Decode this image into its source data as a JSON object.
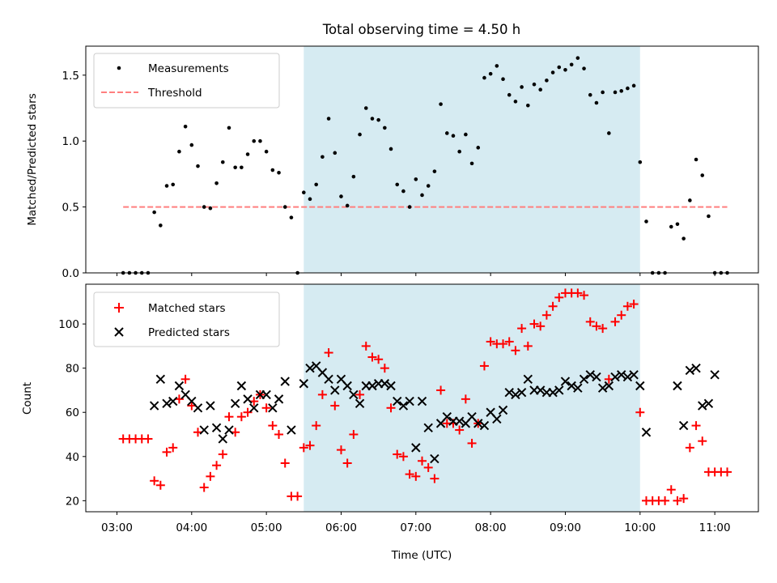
{
  "title": "Total observing time = 4.50 h",
  "xlabel": "Time (UTC)",
  "xticks": [
    "03:00",
    "04:00",
    "05:00",
    "06:00",
    "07:00",
    "08:00",
    "09:00",
    "10:00",
    "11:00"
  ],
  "colors": {
    "measurement": "#000000",
    "threshold": "#ff7f7f",
    "matched": "#ff0000",
    "predicted": "#000000",
    "span": "#add8e6"
  },
  "chart_data": [
    {
      "type": "scatter",
      "ylabel": "Matched/Predicted stars",
      "xlim": [
        "02:35",
        "11:35"
      ],
      "ylim": [
        0,
        1.72
      ],
      "yticks": [
        "0.0",
        "0.5",
        "1.0",
        "1.5"
      ],
      "legend": "upper-left",
      "grid": false,
      "shaded_span": [
        "05:30",
        "10:00"
      ],
      "threshold": {
        "name": "Threshold",
        "y": 0.5,
        "x": [
          "03:05",
          "11:10"
        ]
      },
      "series": [
        {
          "name": "Measurements",
          "x": [
            "03:05",
            "03:10",
            "03:15",
            "03:20",
            "03:25",
            "03:30",
            "03:35",
            "03:40",
            "03:45",
            "03:50",
            "03:55",
            "04:00",
            "04:05",
            "04:10",
            "04:15",
            "04:20",
            "04:25",
            "04:30",
            "04:35",
            "04:40",
            "04:45",
            "04:50",
            "04:55",
            "05:00",
            "05:05",
            "05:10",
            "05:15",
            "05:20",
            "05:25",
            "05:30",
            "05:35",
            "05:40",
            "05:45",
            "05:50",
            "05:55",
            "06:00",
            "06:05",
            "06:10",
            "06:15",
            "06:20",
            "06:25",
            "06:30",
            "06:35",
            "06:40",
            "06:45",
            "06:50",
            "06:55",
            "07:00",
            "07:05",
            "07:10",
            "07:15",
            "07:20",
            "07:25",
            "07:30",
            "07:35",
            "07:40",
            "07:45",
            "07:50",
            "07:55",
            "08:00",
            "08:05",
            "08:10",
            "08:15",
            "08:20",
            "08:25",
            "08:30",
            "08:35",
            "08:40",
            "08:45",
            "08:50",
            "08:55",
            "09:00",
            "09:05",
            "09:10",
            "09:15",
            "09:20",
            "09:25",
            "09:30",
            "09:35",
            "09:40",
            "09:45",
            "09:50",
            "09:55",
            "10:00",
            "10:05",
            "10:10",
            "10:15",
            "10:20",
            "10:25",
            "10:30",
            "10:35",
            "10:40",
            "10:45",
            "10:50",
            "10:55",
            "11:00",
            "11:05",
            "11:10"
          ],
          "values": [
            0,
            0,
            0,
            0,
            0,
            0.46,
            0.36,
            0.66,
            0.67,
            0.92,
            1.11,
            0.97,
            0.81,
            0.5,
            0.49,
            0.68,
            0.84,
            1.1,
            0.8,
            0.8,
            0.9,
            1.0,
            1.0,
            0.92,
            0.78,
            0.76,
            0.5,
            0.42,
            0.0,
            0.61,
            0.56,
            0.67,
            0.88,
            1.17,
            0.91,
            0.58,
            0.51,
            0.73,
            1.05,
            1.25,
            1.17,
            1.16,
            1.1,
            0.94,
            0.67,
            0.62,
            0.5,
            0.71,
            0.59,
            0.66,
            0.77,
            1.28,
            1.06,
            1.04,
            0.92,
            1.05,
            0.83,
            0.95,
            1.48,
            1.51,
            1.57,
            1.47,
            1.35,
            1.3,
            1.41,
            1.27,
            1.43,
            1.39,
            1.46,
            1.52,
            1.56,
            1.54,
            1.58,
            1.63,
            1.55,
            1.35,
            1.29,
            1.37,
            1.06,
            1.37,
            1.38,
            1.4,
            1.42,
            0.84,
            0.39,
            0,
            0,
            0,
            0.35,
            0.37,
            0.26,
            0.55,
            0.86,
            0.74,
            0.43,
            0,
            0,
            0
          ]
        }
      ]
    },
    {
      "type": "scatter",
      "ylabel": "Count",
      "xlim": [
        "02:35",
        "11:35"
      ],
      "ylim": [
        15,
        118
      ],
      "yticks": [
        "20",
        "40",
        "60",
        "80",
        "100"
      ],
      "legend": "upper-left",
      "grid": false,
      "shaded_span": [
        "05:30",
        "10:00"
      ],
      "series": [
        {
          "name": "Matched stars",
          "marker": "plus",
          "x": [
            "03:05",
            "03:10",
            "03:15",
            "03:20",
            "03:25",
            "03:30",
            "03:35",
            "03:40",
            "03:45",
            "03:50",
            "03:55",
            "04:00",
            "04:05",
            "04:10",
            "04:15",
            "04:20",
            "04:25",
            "04:30",
            "04:35",
            "04:40",
            "04:45",
            "04:50",
            "04:55",
            "05:00",
            "05:05",
            "05:10",
            "05:15",
            "05:20",
            "05:25",
            "05:30",
            "05:35",
            "05:40",
            "05:45",
            "05:50",
            "05:55",
            "06:00",
            "06:05",
            "06:10",
            "06:15",
            "06:20",
            "06:25",
            "06:30",
            "06:35",
            "06:40",
            "06:45",
            "06:50",
            "06:55",
            "07:00",
            "07:05",
            "07:10",
            "07:15",
            "07:20",
            "07:25",
            "07:30",
            "07:35",
            "07:40",
            "07:45",
            "07:50",
            "07:55",
            "08:00",
            "08:05",
            "08:10",
            "08:15",
            "08:20",
            "08:25",
            "08:30",
            "08:35",
            "08:40",
            "08:45",
            "08:50",
            "08:55",
            "09:00",
            "09:05",
            "09:10",
            "09:15",
            "09:20",
            "09:25",
            "09:30",
            "09:35",
            "09:40",
            "09:45",
            "09:50",
            "09:55",
            "10:00",
            "10:05",
            "10:10",
            "10:15",
            "10:20",
            "10:25",
            "10:30",
            "10:35",
            "10:40",
            "10:45",
            "10:50",
            "10:55",
            "11:00",
            "11:05",
            "11:10"
          ],
          "values": [
            48,
            48,
            48,
            48,
            48,
            29,
            27,
            42,
            44,
            66,
            75,
            63,
            51,
            26,
            31,
            36,
            41,
            58,
            51,
            58,
            60,
            65,
            68,
            62,
            54,
            50,
            37,
            22,
            22,
            44,
            45,
            54,
            68,
            87,
            63,
            43,
            37,
            50,
            68,
            90,
            85,
            84,
            80,
            62,
            41,
            40,
            32,
            31,
            38,
            35,
            30,
            70,
            55,
            55,
            52,
            66,
            46,
            55,
            81,
            92,
            91,
            91,
            92,
            88,
            98,
            90,
            100,
            99,
            104,
            108,
            112,
            114,
            114,
            114,
            113,
            101,
            99,
            98,
            75,
            101,
            104,
            108,
            109,
            60,
            20,
            20,
            20,
            20,
            25,
            20,
            21,
            44,
            54,
            47,
            33,
            33,
            33,
            33
          ]
        },
        {
          "name": "Predicted stars",
          "marker": "x",
          "x": [
            "03:30",
            "03:35",
            "03:40",
            "03:45",
            "03:50",
            "03:55",
            "04:00",
            "04:05",
            "04:10",
            "04:15",
            "04:20",
            "04:25",
            "04:30",
            "04:35",
            "04:40",
            "04:45",
            "04:50",
            "04:55",
            "05:00",
            "05:05",
            "05:10",
            "05:15",
            "05:20",
            "05:25",
            "05:30",
            "05:35",
            "05:40",
            "05:45",
            "05:50",
            "05:55",
            "06:00",
            "06:05",
            "06:10",
            "06:15",
            "06:20",
            "06:25",
            "06:30",
            "06:35",
            "06:40",
            "06:45",
            "06:50",
            "06:55",
            "07:00",
            "07:05",
            "07:10",
            "07:15",
            "07:20",
            "07:25",
            "07:30",
            "07:35",
            "07:40",
            "07:45",
            "07:50",
            "07:55",
            "08:00",
            "08:05",
            "08:10",
            "08:15",
            "08:20",
            "08:25",
            "08:30",
            "08:35",
            "08:40",
            "08:45",
            "08:50",
            "08:55",
            "09:00",
            "09:05",
            "09:10",
            "09:15",
            "09:20",
            "09:25",
            "09:30",
            "09:35",
            "09:40",
            "09:45",
            "09:50",
            "09:55",
            "10:00",
            "10:05",
            "10:10",
            "10:15",
            "10:20",
            "10:25",
            "10:30",
            "10:35",
            "10:40",
            "10:45",
            "10:50",
            "10:55",
            "11:00",
            "11:05",
            "11:10"
          ],
          "values": [
            63,
            75,
            64,
            65,
            72,
            68,
            65,
            62,
            52,
            63,
            53,
            48,
            52,
            64,
            72,
            66,
            62,
            68,
            68,
            62,
            66,
            74,
            52,
            null,
            73,
            80,
            81,
            78,
            75,
            70,
            75,
            72,
            68,
            64,
            72,
            72,
            73,
            73,
            72,
            65,
            63,
            65,
            44,
            65,
            53,
            39,
            55,
            58,
            56,
            56,
            55,
            58,
            55,
            54,
            60,
            57,
            61,
            69,
            68,
            69,
            75,
            70,
            70,
            69,
            69,
            70,
            74,
            72,
            71,
            75,
            77,
            76,
            71,
            72,
            76,
            77,
            76,
            77,
            72,
            51,
            null,
            null,
            null,
            null,
            72,
            54,
            79,
            80,
            63,
            64,
            77,
            null,
            null
          ]
        }
      ]
    }
  ]
}
